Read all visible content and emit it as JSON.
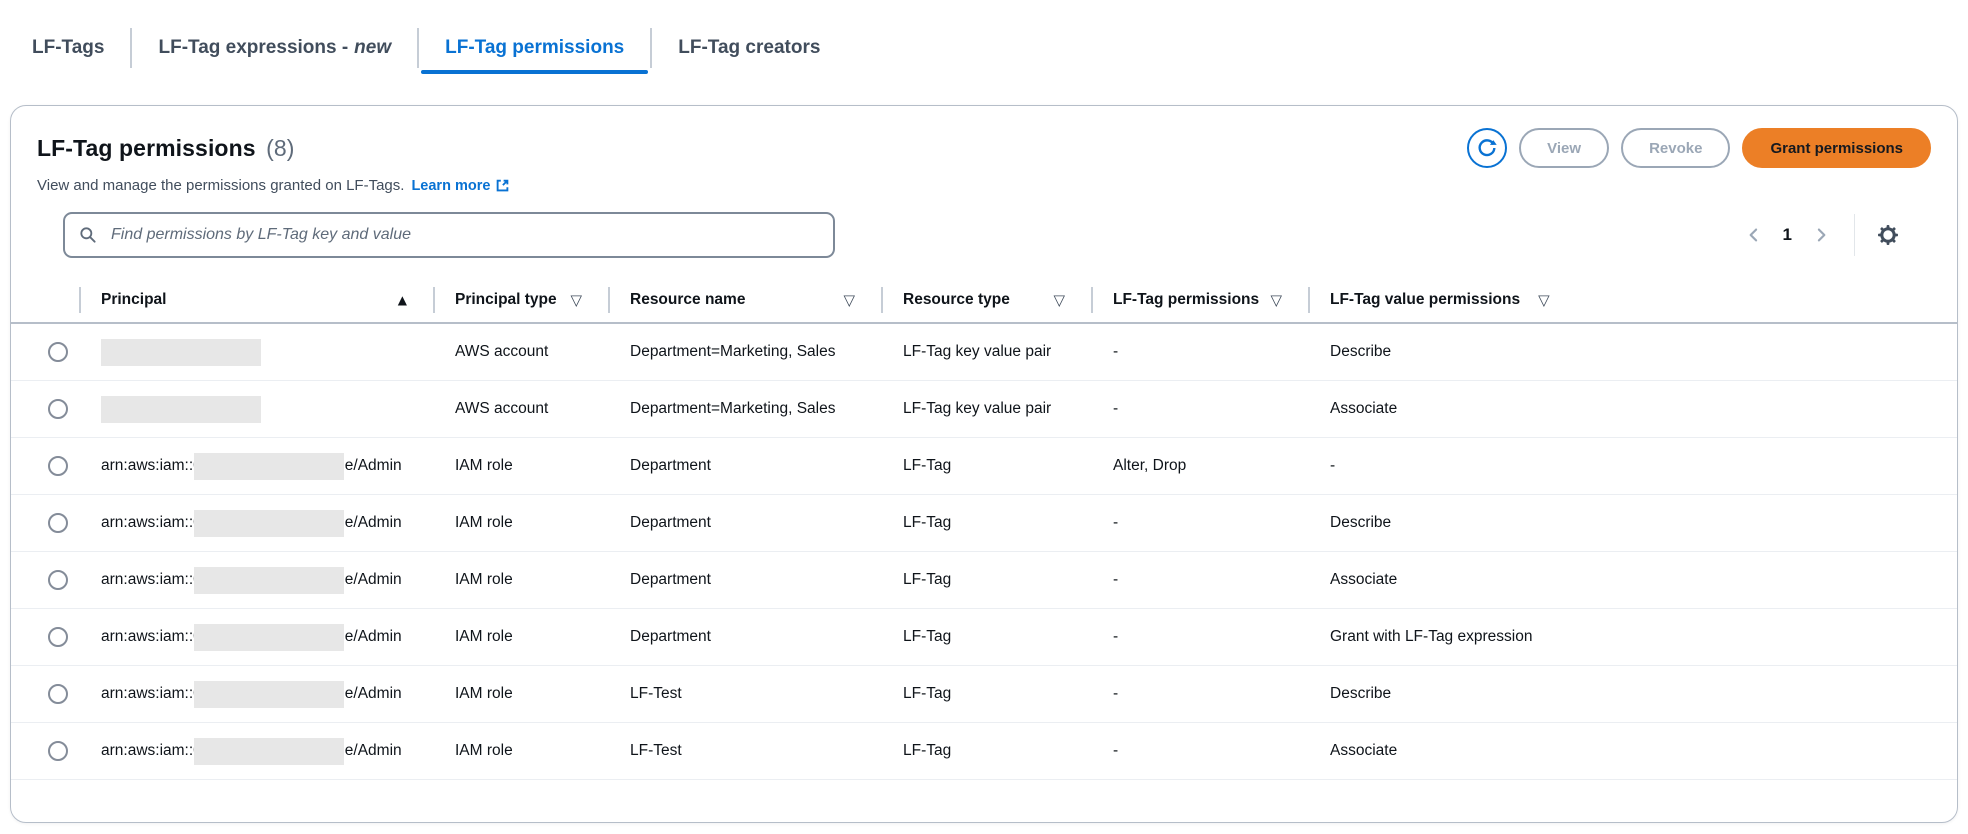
{
  "colors": {
    "accent_blue": "#0972d3",
    "primary_button_orange": "#ec7f26",
    "heading_text": "#0f141a",
    "disabled_gray": "#9ba7b6"
  },
  "icons": {
    "sort_ascending": "▲",
    "filter": "▽"
  },
  "tabs": [
    {
      "label": "LF-Tags",
      "active": false
    },
    {
      "label": "LF-Tag expressions -",
      "label_em": "new",
      "active": false
    },
    {
      "label": "LF-Tag permissions",
      "active": true
    },
    {
      "label": "LF-Tag creators",
      "active": false
    }
  ],
  "panel": {
    "title": "LF-Tag permissions",
    "count": "(8)",
    "description": "View and manage the permissions granted on LF-Tags.",
    "learn_more": "Learn more",
    "actions": {
      "view": "View",
      "revoke": "Revoke",
      "grant": "Grant permissions"
    },
    "search_placeholder": "Find permissions by LF-Tag key and value",
    "pagination": {
      "current_page": "1"
    }
  },
  "table": {
    "columns": [
      {
        "key": "principal",
        "label": "Principal",
        "icon": "sort-asc",
        "icon_align": "right"
      },
      {
        "key": "principal_type",
        "label": "Principal type",
        "icon": "filter",
        "icon_align": "right"
      },
      {
        "key": "resource_name",
        "label": "Resource name",
        "icon": "filter",
        "icon_align": "right"
      },
      {
        "key": "resource_type",
        "label": "Resource type",
        "icon": "filter",
        "icon_align": "right"
      },
      {
        "key": "lf_tag_permissions",
        "label": "LF-Tag permissions",
        "icon": "filter",
        "icon_align": "right"
      },
      {
        "key": "lf_tag_value_permissions",
        "label": "LF-Tag value permissions",
        "icon": "filter",
        "icon_align": "after"
      }
    ],
    "rows": [
      {
        "principal": {
          "prefix": "",
          "redacted": true,
          "suffix": ""
        },
        "principal_type": "AWS account",
        "resource_name": "Department=Marketing, Sales",
        "resource_type": "LF-Tag key value pair",
        "lf_tag_permissions": "-",
        "lf_tag_value_permissions": "Describe"
      },
      {
        "principal": {
          "prefix": "",
          "redacted": true,
          "suffix": ""
        },
        "principal_type": "AWS account",
        "resource_name": "Department=Marketing, Sales",
        "resource_type": "LF-Tag key value pair",
        "lf_tag_permissions": "-",
        "lf_tag_value_permissions": "Associate"
      },
      {
        "principal": {
          "prefix": "arn:aws:iam::0",
          "redacted": true,
          "suffix": "e/Admin"
        },
        "principal_type": "IAM role",
        "resource_name": "Department",
        "resource_type": "LF-Tag",
        "lf_tag_permissions": "Alter, Drop",
        "lf_tag_value_permissions": "-"
      },
      {
        "principal": {
          "prefix": "arn:aws:iam::0",
          "redacted": true,
          "suffix": "e/Admin"
        },
        "principal_type": "IAM role",
        "resource_name": "Department",
        "resource_type": "LF-Tag",
        "lf_tag_permissions": "-",
        "lf_tag_value_permissions": "Describe"
      },
      {
        "principal": {
          "prefix": "arn:aws:iam::0",
          "redacted": true,
          "suffix": "e/Admin"
        },
        "principal_type": "IAM role",
        "resource_name": "Department",
        "resource_type": "LF-Tag",
        "lf_tag_permissions": "-",
        "lf_tag_value_permissions": "Associate"
      },
      {
        "principal": {
          "prefix": "arn:aws:iam::0",
          "redacted": true,
          "suffix": "e/Admin"
        },
        "principal_type": "IAM role",
        "resource_name": "Department",
        "resource_type": "LF-Tag",
        "lf_tag_permissions": "-",
        "lf_tag_value_permissions": "Grant with LF-Tag expression"
      },
      {
        "principal": {
          "prefix": "arn:aws:iam::0",
          "redacted": true,
          "suffix": "e/Admin"
        },
        "principal_type": "IAM role",
        "resource_name": "LF-Test",
        "resource_type": "LF-Tag",
        "lf_tag_permissions": "-",
        "lf_tag_value_permissions": "Describe"
      },
      {
        "principal": {
          "prefix": "arn:aws:iam::0",
          "redacted": true,
          "suffix": "e/Admin"
        },
        "principal_type": "IAM role",
        "resource_name": "LF-Test",
        "resource_type": "LF-Tag",
        "lf_tag_permissions": "-",
        "lf_tag_value_permissions": "Associate"
      }
    ]
  }
}
